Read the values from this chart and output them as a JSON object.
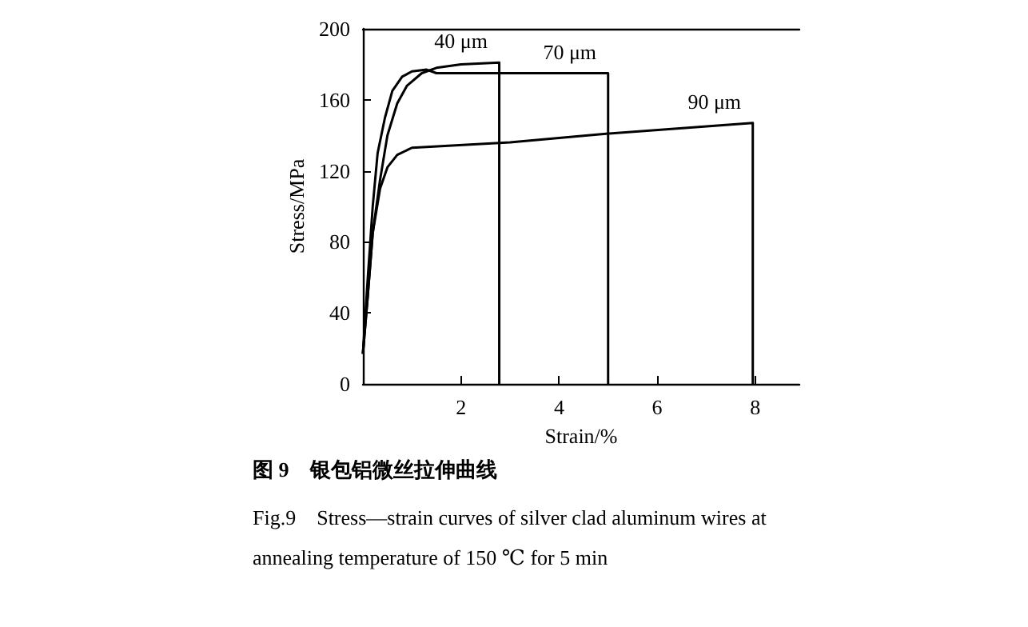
{
  "chart_data": {
    "type": "line",
    "title": "图 9　银包铝微丝拉伸曲线",
    "subtitle": "Fig.9　Stress—strain curves of silver clad aluminum wires at annealing temperature of 150 ℃ for 5 min",
    "xlabel": "Strain/%",
    "ylabel": "Stress/MPa",
    "xlim": [
      0,
      8.9
    ],
    "xticks": [
      2,
      4,
      6,
      8
    ],
    "ylim": [
      0,
      200
    ],
    "yticks": [
      0,
      40,
      80,
      120,
      160,
      200
    ],
    "grid": false,
    "legend": false,
    "marker": "none",
    "line_style": "solid",
    "series": [
      {
        "name": "40 μm",
        "color": "#000000",
        "x": [
          0,
          0.1,
          0.2,
          0.35,
          0.5,
          0.7,
          0.9,
          1.2,
          1.5,
          2,
          2.78,
          2.78
        ],
        "values": [
          17,
          50,
          85,
          115,
          140,
          158,
          168,
          175,
          178,
          180,
          181,
          0
        ]
      },
      {
        "name": "70 μm",
        "color": "#000000",
        "x": [
          0,
          0.1,
          0.2,
          0.3,
          0.45,
          0.6,
          0.8,
          1.0,
          1.3,
          1.5,
          3,
          5.0,
          5.0
        ],
        "values": [
          17,
          60,
          100,
          130,
          150,
          165,
          173,
          176,
          177,
          175,
          175,
          175,
          0
        ]
      },
      {
        "name": "90 μm",
        "color": "#000000",
        "x": [
          0,
          0.1,
          0.2,
          0.35,
          0.5,
          0.7,
          1.0,
          3,
          5,
          7.95,
          7.95
        ],
        "values": [
          17,
          50,
          85,
          110,
          122,
          129,
          133,
          136,
          141,
          147,
          0
        ]
      }
    ]
  }
}
